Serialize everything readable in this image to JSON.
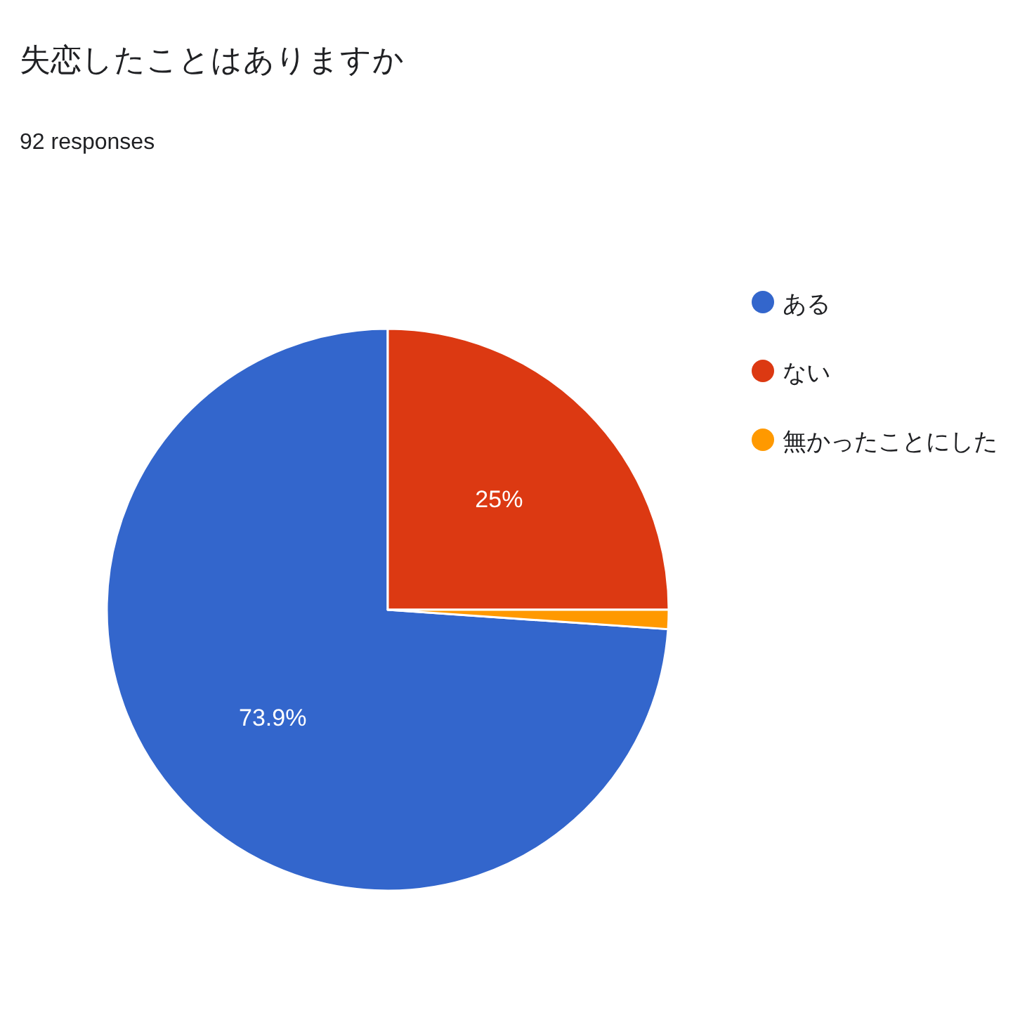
{
  "chart_data": {
    "type": "pie",
    "title": "失恋したことはありますか",
    "subtitle": "92 responses",
    "categories": [
      "ある",
      "ない",
      "無かったことにした"
    ],
    "values": [
      73.9,
      25,
      1.1
    ],
    "colors": [
      "#3366cc",
      "#dc3912",
      "#ff9900"
    ],
    "value_labels": [
      "73.9%",
      "25%",
      null
    ],
    "legend": "right"
  }
}
